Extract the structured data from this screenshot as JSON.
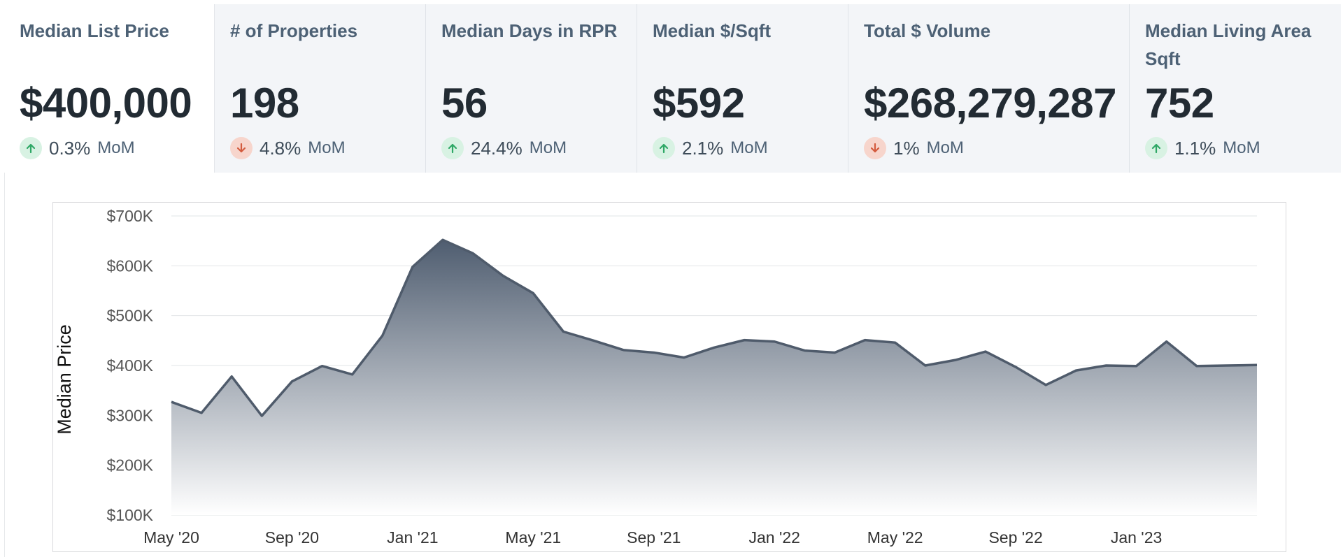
{
  "kpis": [
    {
      "title": "Median List Price",
      "value": "$400,000",
      "direction": "up",
      "change": "0.3%",
      "period": "MoM",
      "active": true
    },
    {
      "title": "# of Properties",
      "value": "198",
      "direction": "down",
      "change": "4.8%",
      "period": "MoM",
      "active": false
    },
    {
      "title": "Median Days in RPR",
      "value": "56",
      "direction": "up",
      "change": "24.4%",
      "period": "MoM",
      "active": false
    },
    {
      "title": "Median $/Sqft",
      "value": "$592",
      "direction": "up",
      "change": "2.1%",
      "period": "MoM",
      "active": false
    },
    {
      "title": "Total $ Volume",
      "value": "$268,279,287",
      "direction": "down",
      "change": "1%",
      "period": "MoM",
      "active": false
    },
    {
      "title": "Median Living Area Sqft",
      "value": "752",
      "direction": "up",
      "change": "1.1%",
      "period": "MoM",
      "active": false
    }
  ],
  "colors": {
    "up_arrow": "#2fa866",
    "down_arrow": "#d35b3e",
    "line": "#4f5b6b",
    "area_top": "#4f5d70",
    "area_bottom": "#ffffff",
    "grid": "#e2e4e7",
    "axis_text": "#555555"
  },
  "chart_data": {
    "type": "area",
    "ylabel": "Median Price",
    "xlabel": "",
    "ylim": [
      100000,
      700000
    ],
    "yticks": [
      700000,
      600000,
      500000,
      400000,
      300000,
      200000,
      100000
    ],
    "ytick_labels": [
      "$700K",
      "$600K",
      "$500K",
      "$400K",
      "$300K",
      "$200K",
      "$100K"
    ],
    "xtick_labels": [
      "May '20",
      "Sep '20",
      "Jan '21",
      "May '21",
      "Sep '21",
      "Jan '22",
      "May '22",
      "Sep '22",
      "Jan '23"
    ],
    "xtick_index": [
      0,
      4,
      8,
      12,
      16,
      20,
      24,
      28,
      32
    ],
    "grid": true,
    "x": [
      "2020-05",
      "2020-06",
      "2020-07",
      "2020-08",
      "2020-09",
      "2020-10",
      "2020-11",
      "2020-12",
      "2021-01",
      "2021-02",
      "2021-03",
      "2021-04",
      "2021-05",
      "2021-06",
      "2021-07",
      "2021-08",
      "2021-09",
      "2021-10",
      "2021-11",
      "2021-12",
      "2022-01",
      "2022-02",
      "2022-03",
      "2022-04",
      "2022-05",
      "2022-06",
      "2022-07",
      "2022-08",
      "2022-09",
      "2022-10",
      "2022-11",
      "2022-12",
      "2023-01",
      "2023-02",
      "2023-03",
      "2023-04",
      "2023-05"
    ],
    "values": [
      327000,
      305000,
      378000,
      299000,
      368000,
      399000,
      382000,
      460000,
      598000,
      652000,
      625000,
      580000,
      545000,
      468000,
      450000,
      431000,
      426000,
      416000,
      436000,
      451000,
      448000,
      430000,
      426000,
      451000,
      446000,
      400000,
      411000,
      428000,
      397000,
      361000,
      390000,
      400000,
      399000,
      448000,
      399000,
      400000,
      401000
    ]
  }
}
